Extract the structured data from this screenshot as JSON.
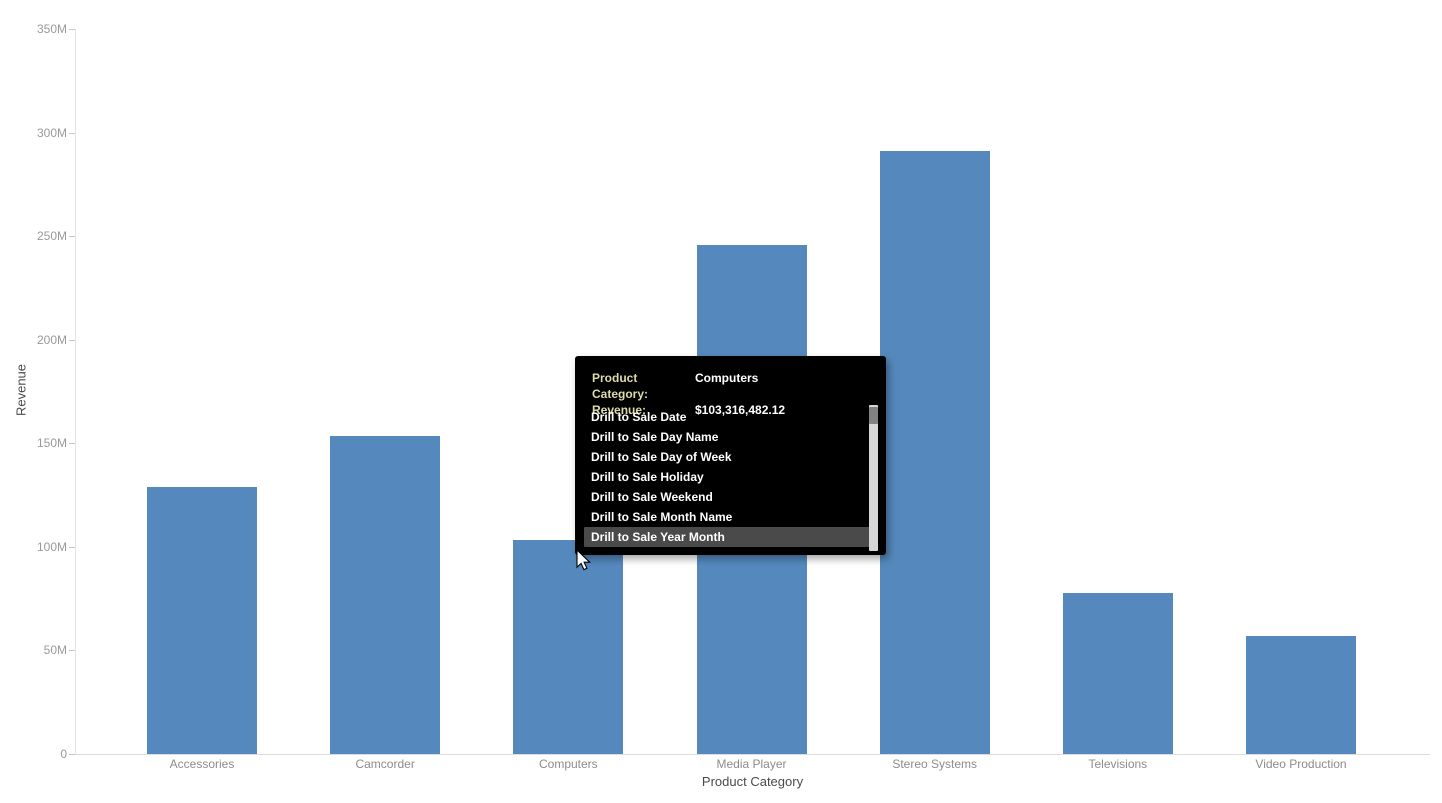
{
  "chart_data": {
    "type": "bar",
    "title": "",
    "xlabel": "Product Category",
    "ylabel": "Revenue",
    "categories": [
      "Accessories",
      "Camcorder",
      "Computers",
      "Media Player",
      "Stereo Systems",
      "Televisions",
      "Video Production"
    ],
    "values": [
      129.1,
      153.7,
      103.32,
      245.6,
      291.0,
      77.8,
      57.0
    ],
    "values_unit": "M",
    "ylim": [
      0,
      350
    ],
    "yticks": [
      {
        "v": 0,
        "label": "0"
      },
      {
        "v": 50,
        "label": "50M"
      },
      {
        "v": 100,
        "label": "100M"
      },
      {
        "v": 150,
        "label": "150M"
      },
      {
        "v": 200,
        "label": "200M"
      },
      {
        "v": 250,
        "label": "250M"
      },
      {
        "v": 300,
        "label": "300M"
      },
      {
        "v": 350,
        "label": "350M"
      }
    ],
    "grid": false,
    "legend": false,
    "bar_color": "#5589BD"
  },
  "tooltip": {
    "rows": [
      {
        "label": "Product Category:",
        "value": "Computers"
      },
      {
        "label": "Revenue:",
        "value": "$103,316,482.12"
      }
    ],
    "menu_items": [
      "Drill to Sale Date",
      "Drill to Sale Day Name",
      "Drill to Sale Day of Week",
      "Drill to Sale Holiday",
      "Drill to Sale Weekend",
      "Drill to Sale Month Name",
      "Drill to Sale Year Month"
    ],
    "selected_index": 6,
    "colors": {
      "background": "#000000",
      "label_text": "#dcdcaa",
      "value_text": "#ffffff",
      "item_text": "#ffffff",
      "highlight": "#4a4a4a",
      "scroll_track": "#d7d7d7",
      "scroll_thumb": "#828282"
    }
  }
}
